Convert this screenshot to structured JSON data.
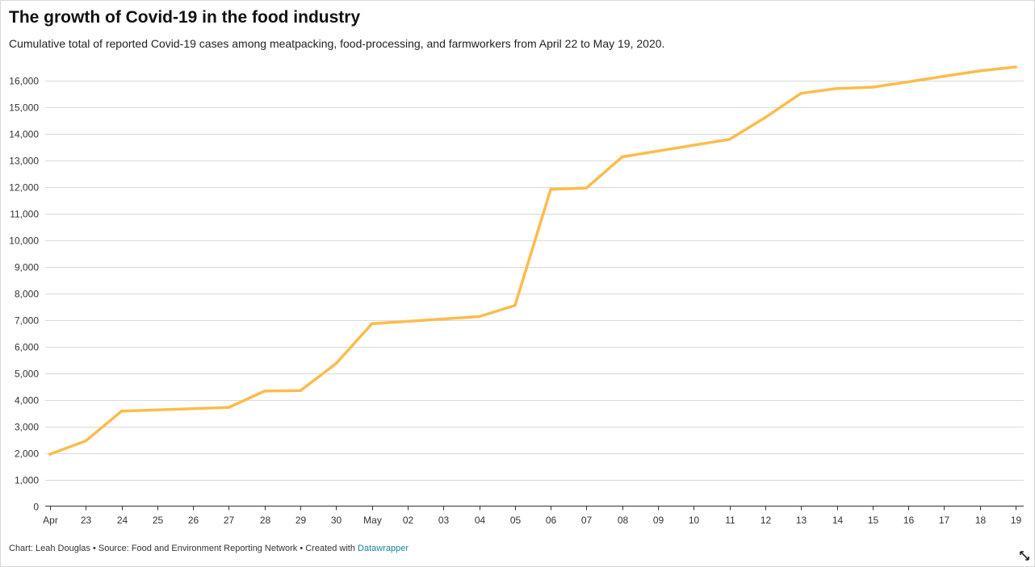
{
  "header": {
    "title": "The growth of Covid-19 in the food industry",
    "subtitle": "Cumulative total of reported Covid-19 cases among meatpacking, food-processing, and farmworkers from April 22 to May 19, 2020."
  },
  "footer": {
    "chart_prefix": "Chart: Leah Douglas • Source: Food and Environment Reporting Network • Created with ",
    "link_text": "Datawrapper",
    "expand_icon": "expand-arrows-icon"
  },
  "colors": {
    "line": "#fcbc4c",
    "grid": "#d9d9d9",
    "axis": "#333333",
    "link": "#1d81a2"
  },
  "chart_data": {
    "type": "line",
    "title": "The growth of Covid-19 in the food industry",
    "xlabel": "",
    "ylabel": "",
    "x_ticks": [
      "Apr",
      "23",
      "24",
      "25",
      "26",
      "27",
      "28",
      "29",
      "30",
      "May",
      "02",
      "03",
      "04",
      "05",
      "06",
      "07",
      "08",
      "09",
      "10",
      "11",
      "12",
      "13",
      "14",
      "15",
      "16",
      "17",
      "18",
      "19"
    ],
    "y_ticks": [
      0,
      1000,
      2000,
      3000,
      4000,
      5000,
      6000,
      7000,
      8000,
      9000,
      10000,
      11000,
      12000,
      13000,
      14000,
      15000,
      16000
    ],
    "y_tick_labels": [
      "0",
      "1,000",
      "2,000",
      "3,000",
      "4,000",
      "5,000",
      "6,000",
      "7,000",
      "8,000",
      "9,000",
      "10,000",
      "11,000",
      "12,000",
      "13,000",
      "14,000",
      "15,000",
      "16,000"
    ],
    "ylim": [
      0,
      16500
    ],
    "grid": true,
    "series": [
      {
        "dates": [
          "2020-04-22",
          "2020-04-23",
          "2020-04-24",
          "2020-04-27",
          "2020-04-28",
          "2020-04-29",
          "2020-04-30",
          "2020-05-01",
          "2020-05-04",
          "2020-05-05",
          "2020-05-06",
          "2020-05-07",
          "2020-05-08",
          "2020-05-11",
          "2020-05-12",
          "2020-05-13",
          "2020-05-14",
          "2020-05-15",
          "2020-05-16",
          "2020-05-17",
          "2020-05-18",
          "2020-05-19"
        ],
        "values": [
          1950,
          2450,
          3570,
          3710,
          4320,
          4340,
          5360,
          6850,
          7120,
          7540,
          11900,
          11950,
          13120,
          13780,
          14600,
          15510,
          15690,
          15740,
          15940,
          16150,
          16350,
          16500
        ]
      }
    ]
  }
}
